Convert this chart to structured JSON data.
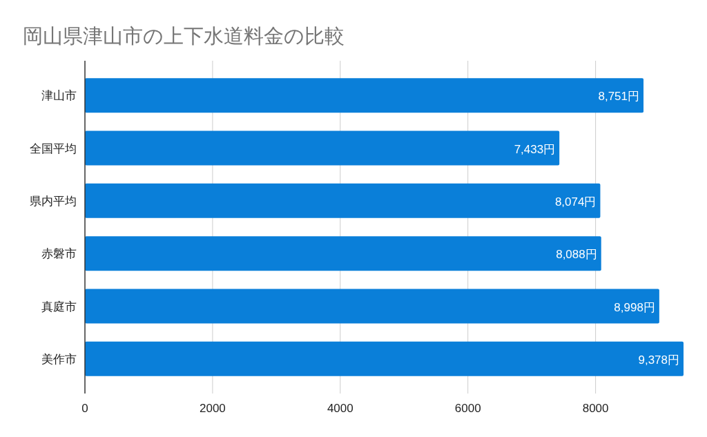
{
  "chart_data": {
    "type": "bar",
    "orientation": "horizontal",
    "title": "岡山県津山市の上下水道料金の比較",
    "categories": [
      "津山市",
      "全国平均",
      "県内平均",
      "赤磐市",
      "真庭市",
      "美作市"
    ],
    "values": [
      8751,
      7433,
      8074,
      8088,
      8998,
      9378
    ],
    "value_labels": [
      "8,751円",
      "7,433円",
      "8,074円",
      "8,088円",
      "8,998円",
      "9,378円"
    ],
    "color": "#0a7fd9",
    "xlim": [
      0,
      9378
    ],
    "xticks": [
      0,
      2000,
      4000,
      6000,
      8000
    ],
    "grid": "x"
  }
}
